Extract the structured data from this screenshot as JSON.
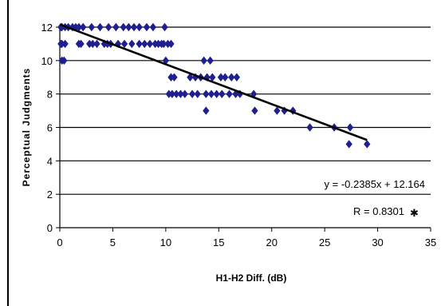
{
  "chart_data": {
    "type": "scatter",
    "title": "",
    "xlabel": "H1-H2 Diff. (dB)",
    "ylabel": "Perceptual Judgments",
    "xlim": [
      0,
      35
    ],
    "ylim": [
      0,
      12
    ],
    "xticks": [
      "0",
      "5",
      "10",
      "15",
      "20",
      "25",
      "30",
      "35"
    ],
    "yticks": [
      "0",
      "2",
      "4",
      "6",
      "8",
      "10",
      "12"
    ],
    "grid": "horizontal",
    "marker_color": "#1f1f8f",
    "trendline_color": "#000000",
    "trendline": {
      "slope": -0.2385,
      "intercept": 12.164,
      "x_range": [
        0,
        29
      ]
    },
    "equation_label": "y = -0.2385x + 12.164",
    "r_label": "R = 0.8301",
    "r_marker": "✱",
    "series": [
      {
        "x": [
          0.1,
          0.2,
          0.5,
          0.8,
          1.2,
          1.5,
          1.8,
          2.2,
          3.0,
          3.8,
          4.6,
          5.3,
          6.0,
          6.5,
          7.0,
          7.5,
          8.2,
          8.8,
          9.9,
          0.1,
          0.2,
          0.5,
          1.8,
          2.0,
          2.8,
          3.1,
          3.5,
          4.2,
          4.5,
          4.8,
          5.5,
          6.1,
          6.8,
          7.5,
          8.0,
          8.5,
          9.0,
          9.3,
          9.6,
          9.8,
          10.2,
          10.5,
          0.2,
          0.4,
          10.0,
          13.6,
          14.2,
          10.5,
          10.8,
          12.3,
          12.8,
          13.3,
          13.9,
          14.4,
          15.2,
          15.6,
          16.2,
          16.7,
          10.3,
          10.6,
          11.0,
          11.4,
          11.8,
          12.5,
          13.0,
          13.8,
          14.3,
          14.8,
          15.3,
          16.0,
          16.6,
          17.0,
          18.3,
          13.8,
          18.4,
          20.5,
          21.2,
          22.0,
          23.6,
          25.9,
          27.4,
          27.3,
          29.0
        ],
        "y": [
          12,
          12,
          12,
          12,
          12,
          12,
          12,
          12,
          12,
          12,
          12,
          12,
          12,
          12,
          12,
          12,
          12,
          12,
          12,
          11,
          11,
          11,
          11,
          11,
          11,
          11,
          11,
          11,
          11,
          11,
          11,
          11,
          11,
          11,
          11,
          11,
          11,
          11,
          11,
          11,
          11,
          11,
          10,
          10,
          10,
          10,
          10,
          9,
          9,
          9,
          9,
          9,
          9,
          9,
          9,
          9,
          9,
          9,
          8,
          8,
          8,
          8,
          8,
          8,
          8,
          8,
          8,
          8,
          8,
          8,
          8,
          8,
          8,
          7,
          7,
          7,
          7,
          7,
          6,
          6,
          6,
          5,
          5
        ]
      }
    ]
  }
}
